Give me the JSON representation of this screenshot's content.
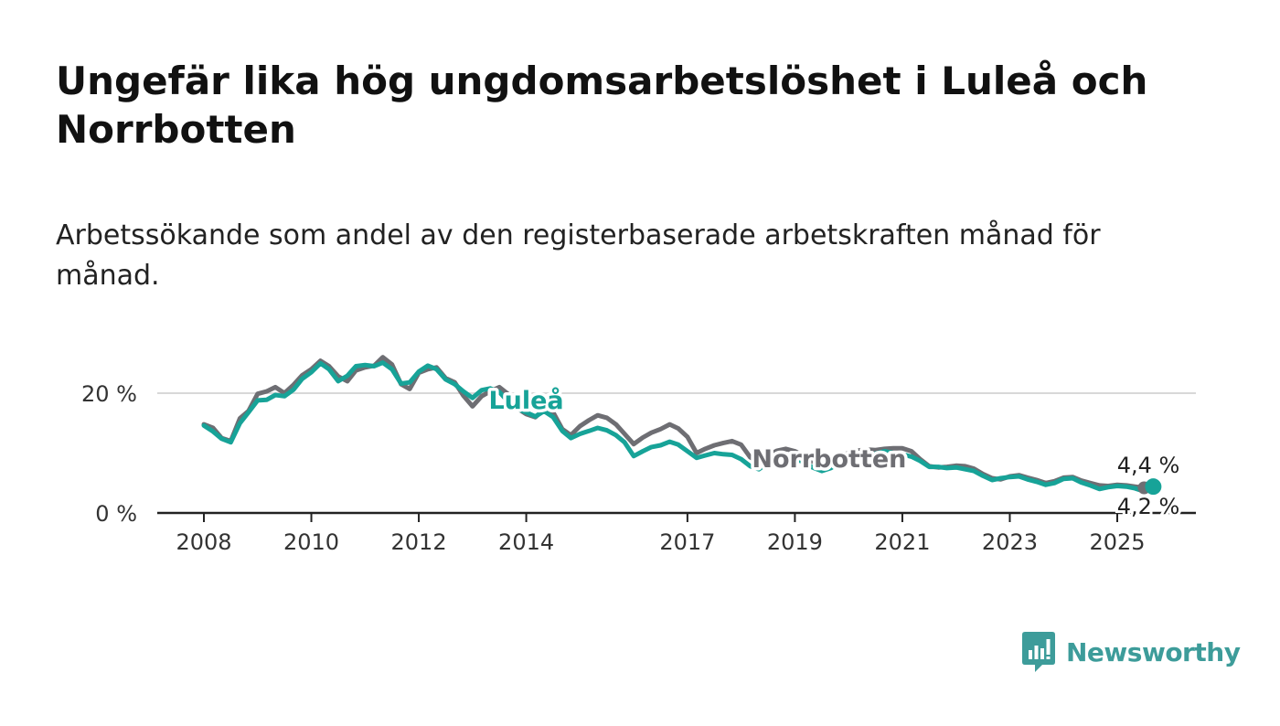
{
  "title": "Ungefär lika hög ungdomsarbetslöshet i Luleå och Norrbotten",
  "subtitle": "Arbetssökande som andel av den registerbaserade arbetskraften månad för månad.",
  "brand": {
    "name": "Newsworthy",
    "color": "#3d9c9a",
    "icon": "newsworthy-logo-icon"
  },
  "chart_data": {
    "type": "line",
    "title": "Ungefär lika hög ungdomsarbetslöshet i Luleå och Norrbotten",
    "subtitle": "Arbetssökande som andel av den registerbaserade arbetskraften månad för månad.",
    "xlabel": "",
    "ylabel": "",
    "x_unit": "year",
    "xlim": [
      2008,
      2025.75
    ],
    "ylim": [
      0,
      30
    ],
    "grid": true,
    "y_ticks": [
      {
        "value": 0,
        "label": "0 %"
      },
      {
        "value": 20,
        "label": "20 %"
      }
    ],
    "x_ticks": [
      {
        "value": 2008,
        "label": "2008"
      },
      {
        "value": 2010,
        "label": "2010"
      },
      {
        "value": 2012,
        "label": "2012"
      },
      {
        "value": 2014,
        "label": "2014"
      },
      {
        "value": 2017,
        "label": "2017"
      },
      {
        "value": 2019,
        "label": "2019"
      },
      {
        "value": 2021,
        "label": "2021"
      },
      {
        "value": 2023,
        "label": "2023"
      },
      {
        "value": 2025,
        "label": "2025"
      }
    ],
    "series": [
      {
        "name": "Norrbotten",
        "color": "#6e6e73",
        "last_label": "4,2 %",
        "points": [
          [
            2008.0,
            14.8
          ],
          [
            2008.17,
            14.2
          ],
          [
            2008.33,
            12.5
          ],
          [
            2008.5,
            12.0
          ],
          [
            2008.67,
            15.8
          ],
          [
            2008.83,
            17.0
          ],
          [
            2009.0,
            19.9
          ],
          [
            2009.17,
            20.3
          ],
          [
            2009.33,
            21.0
          ],
          [
            2009.5,
            20.0
          ],
          [
            2009.67,
            21.4
          ],
          [
            2009.83,
            23.0
          ],
          [
            2010.0,
            24.0
          ],
          [
            2010.17,
            25.4
          ],
          [
            2010.33,
            24.5
          ],
          [
            2010.5,
            22.8
          ],
          [
            2010.67,
            22.0
          ],
          [
            2010.83,
            23.8
          ],
          [
            2011.0,
            24.3
          ],
          [
            2011.17,
            24.6
          ],
          [
            2011.33,
            26.0
          ],
          [
            2011.5,
            24.8
          ],
          [
            2011.67,
            21.5
          ],
          [
            2011.83,
            20.7
          ],
          [
            2012.0,
            23.4
          ],
          [
            2012.17,
            24.0
          ],
          [
            2012.33,
            24.3
          ],
          [
            2012.5,
            22.5
          ],
          [
            2012.67,
            21.8
          ],
          [
            2012.83,
            19.6
          ],
          [
            2013.0,
            17.8
          ],
          [
            2013.17,
            19.5
          ],
          [
            2013.33,
            20.3
          ],
          [
            2013.5,
            21.0
          ],
          [
            2013.67,
            19.8
          ],
          [
            2013.83,
            17.5
          ],
          [
            2014.0,
            16.5
          ],
          [
            2014.17,
            16.0
          ],
          [
            2014.33,
            17.3
          ],
          [
            2014.5,
            16.8
          ],
          [
            2014.67,
            14.0
          ],
          [
            2014.83,
            13.0
          ],
          [
            2015.0,
            14.5
          ],
          [
            2015.17,
            15.5
          ],
          [
            2015.33,
            16.3
          ],
          [
            2015.5,
            15.9
          ],
          [
            2015.67,
            14.8
          ],
          [
            2015.83,
            13.2
          ],
          [
            2016.0,
            11.5
          ],
          [
            2016.17,
            12.6
          ],
          [
            2016.33,
            13.4
          ],
          [
            2016.5,
            14.0
          ],
          [
            2016.67,
            14.8
          ],
          [
            2016.83,
            14.1
          ],
          [
            2017.0,
            12.7
          ],
          [
            2017.17,
            10.0
          ],
          [
            2017.33,
            10.7
          ],
          [
            2017.5,
            11.3
          ],
          [
            2017.67,
            11.7
          ],
          [
            2017.83,
            12.0
          ],
          [
            2018.0,
            11.4
          ],
          [
            2018.17,
            9.3
          ],
          [
            2018.33,
            8.5
          ],
          [
            2018.5,
            9.6
          ],
          [
            2018.67,
            10.4
          ],
          [
            2018.83,
            10.7
          ],
          [
            2019.0,
            10.3
          ],
          [
            2019.17,
            9.5
          ],
          [
            2019.33,
            8.6
          ],
          [
            2019.5,
            8.0
          ],
          [
            2019.67,
            8.6
          ],
          [
            2019.83,
            9.5
          ],
          [
            2020.0,
            10.0
          ],
          [
            2020.17,
            10.4
          ],
          [
            2020.33,
            10.6
          ],
          [
            2020.5,
            10.5
          ],
          [
            2020.67,
            10.7
          ],
          [
            2020.83,
            10.8
          ],
          [
            2021.0,
            10.8
          ],
          [
            2021.17,
            10.3
          ],
          [
            2021.33,
            9.0
          ],
          [
            2021.5,
            7.8
          ],
          [
            2021.67,
            7.6
          ],
          [
            2021.83,
            7.7
          ],
          [
            2022.0,
            7.9
          ],
          [
            2022.17,
            7.8
          ],
          [
            2022.33,
            7.4
          ],
          [
            2022.5,
            6.5
          ],
          [
            2022.67,
            5.8
          ],
          [
            2022.83,
            5.6
          ],
          [
            2023.0,
            6.1
          ],
          [
            2023.17,
            6.3
          ],
          [
            2023.33,
            5.9
          ],
          [
            2023.5,
            5.5
          ],
          [
            2023.67,
            5.0
          ],
          [
            2023.83,
            5.3
          ],
          [
            2024.0,
            5.9
          ],
          [
            2024.17,
            6.0
          ],
          [
            2024.33,
            5.4
          ],
          [
            2024.5,
            5.0
          ],
          [
            2024.67,
            4.6
          ],
          [
            2024.83,
            4.5
          ],
          [
            2025.0,
            4.7
          ],
          [
            2025.17,
            4.6
          ],
          [
            2025.33,
            4.4
          ],
          [
            2025.5,
            4.2
          ]
        ]
      },
      {
        "name": "Luleå",
        "color": "#17a398",
        "last_label": "4,4 %",
        "points": [
          [
            2008.0,
            14.6
          ],
          [
            2008.17,
            13.6
          ],
          [
            2008.33,
            12.4
          ],
          [
            2008.5,
            11.8
          ],
          [
            2008.67,
            15.0
          ],
          [
            2008.83,
            16.8
          ],
          [
            2009.0,
            18.8
          ],
          [
            2009.17,
            18.9
          ],
          [
            2009.33,
            19.7
          ],
          [
            2009.5,
            19.5
          ],
          [
            2009.67,
            20.6
          ],
          [
            2009.83,
            22.4
          ],
          [
            2010.0,
            23.5
          ],
          [
            2010.17,
            25.0
          ],
          [
            2010.33,
            24.0
          ],
          [
            2010.5,
            22.0
          ],
          [
            2010.67,
            22.9
          ],
          [
            2010.83,
            24.5
          ],
          [
            2011.0,
            24.7
          ],
          [
            2011.17,
            24.5
          ],
          [
            2011.33,
            25.1
          ],
          [
            2011.5,
            24.0
          ],
          [
            2011.67,
            21.6
          ],
          [
            2011.83,
            21.8
          ],
          [
            2012.0,
            23.6
          ],
          [
            2012.17,
            24.6
          ],
          [
            2012.33,
            24.0
          ],
          [
            2012.5,
            22.3
          ],
          [
            2012.67,
            21.5
          ],
          [
            2012.83,
            20.3
          ],
          [
            2013.0,
            19.2
          ],
          [
            2013.17,
            20.5
          ],
          [
            2013.33,
            20.8
          ],
          [
            2013.5,
            20.2
          ],
          [
            2013.67,
            18.5
          ],
          [
            2013.83,
            17.4
          ],
          [
            2014.0,
            16.8
          ],
          [
            2014.17,
            16.1
          ],
          [
            2014.33,
            17.0
          ],
          [
            2014.5,
            16.0
          ],
          [
            2014.67,
            13.7
          ],
          [
            2014.83,
            12.5
          ],
          [
            2015.0,
            13.2
          ],
          [
            2015.17,
            13.7
          ],
          [
            2015.33,
            14.2
          ],
          [
            2015.5,
            13.8
          ],
          [
            2015.67,
            13.0
          ],
          [
            2015.83,
            11.8
          ],
          [
            2016.0,
            9.5
          ],
          [
            2016.17,
            10.3
          ],
          [
            2016.33,
            11.0
          ],
          [
            2016.5,
            11.3
          ],
          [
            2016.67,
            11.9
          ],
          [
            2016.83,
            11.4
          ],
          [
            2017.0,
            10.3
          ],
          [
            2017.17,
            9.2
          ],
          [
            2017.33,
            9.6
          ],
          [
            2017.5,
            10.0
          ],
          [
            2017.67,
            9.8
          ],
          [
            2017.83,
            9.7
          ],
          [
            2018.0,
            9.0
          ],
          [
            2018.17,
            7.8
          ],
          [
            2018.33,
            7.3
          ],
          [
            2018.5,
            8.4
          ],
          [
            2018.67,
            9.4
          ],
          [
            2018.83,
            9.5
          ],
          [
            2019.0,
            9.0
          ],
          [
            2019.17,
            8.5
          ],
          [
            2019.33,
            7.6
          ],
          [
            2019.5,
            7.0
          ],
          [
            2019.67,
            7.5
          ],
          [
            2019.83,
            8.4
          ],
          [
            2020.0,
            9.0
          ],
          [
            2020.17,
            9.4
          ],
          [
            2020.33,
            9.6
          ],
          [
            2020.5,
            9.9
          ],
          [
            2020.67,
            10.3
          ],
          [
            2020.83,
            10.0
          ],
          [
            2021.0,
            9.8
          ],
          [
            2021.17,
            9.4
          ],
          [
            2021.33,
            8.7
          ],
          [
            2021.5,
            7.7
          ],
          [
            2021.67,
            7.7
          ],
          [
            2021.83,
            7.5
          ],
          [
            2022.0,
            7.6
          ],
          [
            2022.17,
            7.3
          ],
          [
            2022.33,
            7.0
          ],
          [
            2022.5,
            6.2
          ],
          [
            2022.67,
            5.5
          ],
          [
            2022.83,
            5.8
          ],
          [
            2023.0,
            6.0
          ],
          [
            2023.17,
            6.1
          ],
          [
            2023.33,
            5.6
          ],
          [
            2023.5,
            5.2
          ],
          [
            2023.67,
            4.7
          ],
          [
            2023.83,
            5.0
          ],
          [
            2024.0,
            5.7
          ],
          [
            2024.17,
            5.8
          ],
          [
            2024.33,
            5.1
          ],
          [
            2024.5,
            4.6
          ],
          [
            2024.67,
            4.0
          ],
          [
            2024.83,
            4.3
          ],
          [
            2025.0,
            4.5
          ],
          [
            2025.17,
            4.4
          ],
          [
            2025.33,
            4.1
          ],
          [
            2025.5,
            3.6
          ],
          [
            2025.58,
            4.0
          ],
          [
            2025.67,
            4.4
          ]
        ]
      }
    ],
    "annotations": [
      {
        "text": "Luleå",
        "series": "Luleå",
        "x": 2013.3,
        "y": 18.8
      },
      {
        "text": "Norrbotten",
        "series": "Norrbotten",
        "x": 2018.2,
        "y": 9.0
      }
    ]
  }
}
